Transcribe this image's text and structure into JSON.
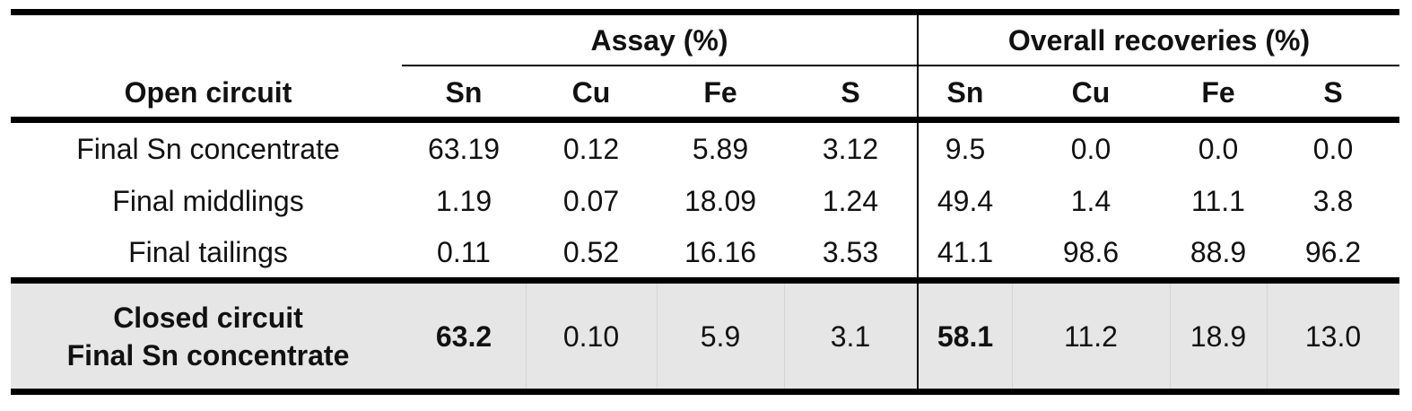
{
  "header": {
    "groups": [
      "Assay (%)",
      "Overall recoveries (%)"
    ],
    "columns": [
      "Open circuit",
      "Sn",
      "Cu",
      "Fe",
      "S",
      "Sn",
      "Cu",
      "Fe",
      "S"
    ]
  },
  "table": {
    "rows": [
      [
        "Final Sn concentrate",
        "63.19",
        "0.12",
        "5.89",
        "3.12",
        "9.5",
        "0.0",
        "0.0",
        "0.0"
      ],
      [
        "Final middlings",
        "1.19",
        "0.07",
        "18.09",
        "1.24",
        "49.4",
        "1.4",
        "11.1",
        "3.8"
      ],
      [
        "Final tailings",
        "0.11",
        "0.52",
        "16.16",
        "3.53",
        "41.1",
        "98.6",
        "88.9",
        "96.2"
      ]
    ],
    "closed_row": {
      "label": [
        "Closed circuit",
        "Final Sn concentrate"
      ],
      "values": [
        "63.2",
        "0.10",
        "5.9",
        "3.1",
        "58.1",
        "11.2",
        "18.9",
        "13.0"
      ]
    }
  }
}
